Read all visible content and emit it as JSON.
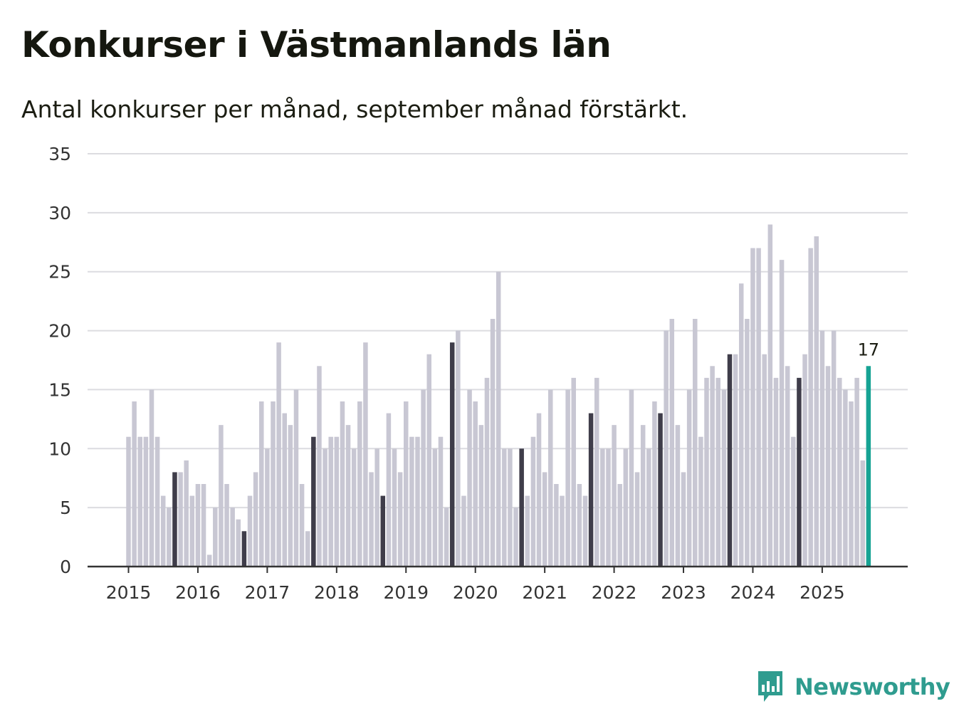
{
  "title": "Konkurser i Västmanlands län",
  "subtitle": "Antal konkurser per månad, september månad förstärkt.",
  "brand": {
    "name": "Newsworthy",
    "icon": "newsworthy-logo-icon",
    "color": "#2f9c8f"
  },
  "colors": {
    "bar": "#c8c7d3",
    "highlight": "#3f3d4a",
    "latest": "#16a394",
    "grid": "#dcdce0",
    "axis": "#333333"
  },
  "chart_data": {
    "type": "bar",
    "title": "Konkurser i Västmanlands län",
    "subtitle": "Antal konkurser per månad, september månad förstärkt.",
    "xlabel": "",
    "ylabel": "",
    "ylim": [
      0,
      35
    ],
    "yticks": [
      0,
      5,
      10,
      15,
      20,
      25,
      30,
      35
    ],
    "grid": true,
    "start": "2015-01",
    "highlight_month": 9,
    "year_labels": [
      "2015",
      "2016",
      "2017",
      "2018",
      "2019",
      "2020",
      "2021",
      "2022",
      "2023",
      "2024",
      "2025"
    ],
    "latest_label": "17",
    "values": [
      11,
      14,
      11,
      11,
      15,
      11,
      6,
      5,
      8,
      8,
      9,
      6,
      7,
      7,
      1,
      5,
      12,
      7,
      5,
      4,
      3,
      6,
      8,
      14,
      10,
      14,
      19,
      13,
      12,
      15,
      7,
      3,
      11,
      17,
      10,
      11,
      11,
      14,
      12,
      10,
      14,
      19,
      8,
      10,
      6,
      13,
      10,
      8,
      14,
      11,
      11,
      15,
      18,
      10,
      11,
      5,
      19,
      20,
      6,
      15,
      14,
      12,
      16,
      21,
      25,
      10,
      10,
      5,
      10,
      6,
      11,
      13,
      8,
      15,
      7,
      6,
      15,
      16,
      7,
      6,
      13,
      16,
      10,
      10,
      12,
      7,
      10,
      15,
      8,
      12,
      10,
      14,
      13,
      20,
      21,
      12,
      8,
      15,
      21,
      11,
      16,
      17,
      16,
      15,
      18,
      18,
      24,
      21,
      27,
      27,
      18,
      29,
      16,
      26,
      17,
      11,
      16,
      18,
      27,
      28,
      20,
      17,
      20,
      16,
      15,
      14,
      16,
      9,
      17
    ]
  }
}
